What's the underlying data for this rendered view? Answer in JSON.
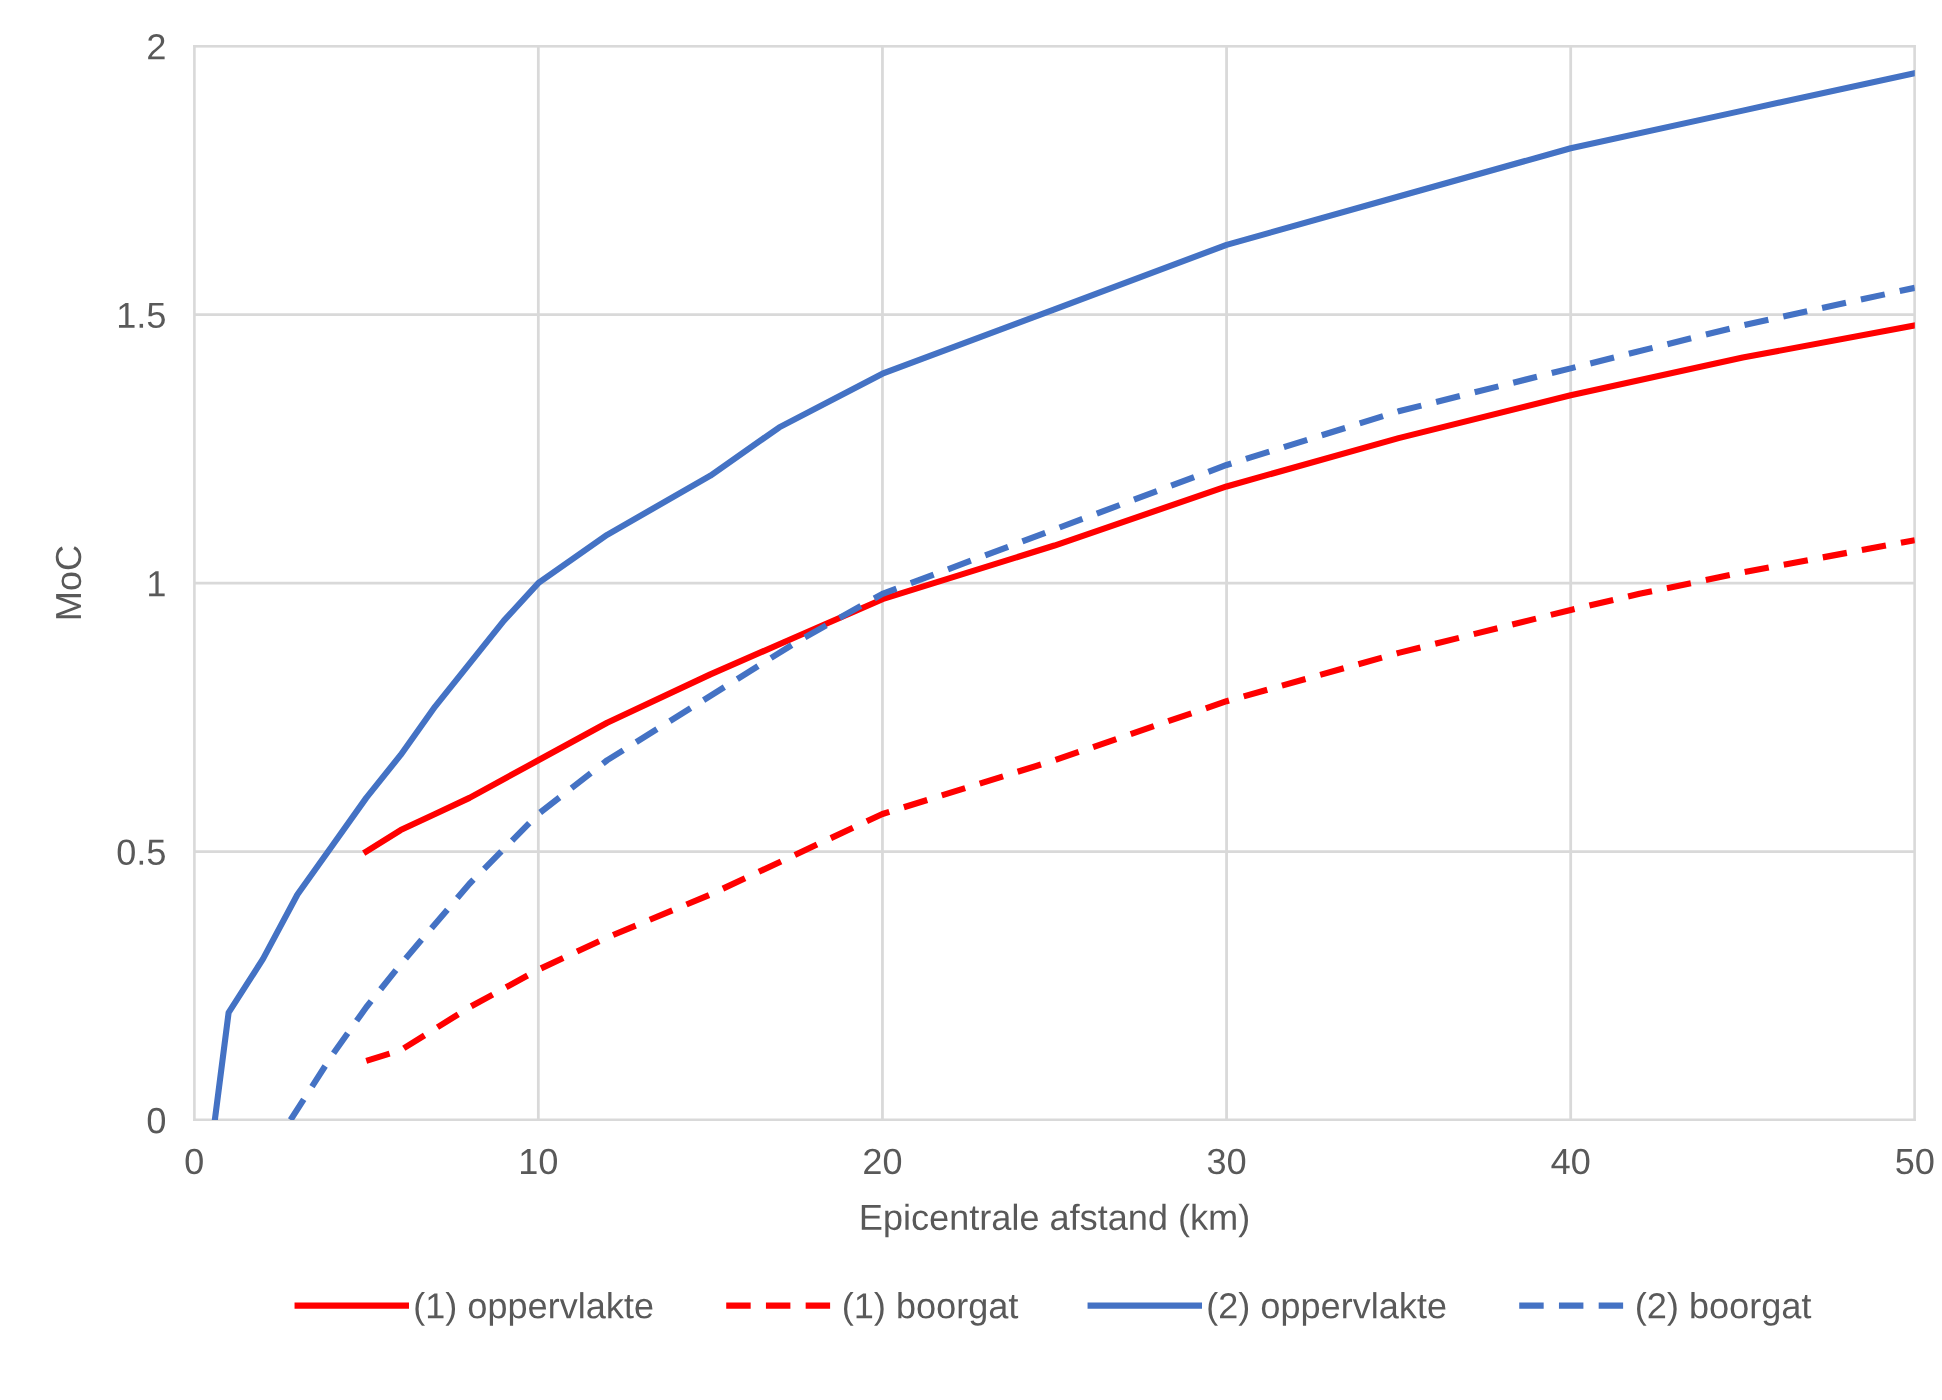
{
  "chart_data": {
    "type": "line",
    "xlabel": "Epicentrale afstand (km)",
    "ylabel": "MoC",
    "xlim": [
      0,
      50
    ],
    "xticks": [
      0,
      10,
      20,
      30,
      40,
      50
    ],
    "ylim": [
      0,
      2
    ],
    "yticks": [
      0,
      0.5,
      1,
      1.5,
      2
    ],
    "grid": true,
    "legend": "bottom",
    "marker": "none",
    "series": [
      {
        "name": "(1) oppervlakte",
        "color": "#ff0000",
        "line_style": "solid",
        "x": [
          5,
          6,
          7,
          8,
          10,
          12,
          15,
          17.5,
          20,
          25,
          30,
          35,
          40,
          45,
          50
        ],
        "values": [
          0.5,
          0.54,
          0.57,
          0.6,
          0.67,
          0.74,
          0.83,
          0.9,
          0.97,
          1.07,
          1.18,
          1.27,
          1.35,
          1.42,
          1.48
        ]
      },
      {
        "name": "(1) boorgat",
        "color": "#ff0000",
        "line_style": "dashed",
        "x": [
          5,
          6,
          8,
          10,
          12,
          15,
          20,
          25,
          30,
          35,
          40,
          42,
          45,
          50
        ],
        "values": [
          0.11,
          0.13,
          0.21,
          0.28,
          0.34,
          0.42,
          0.57,
          0.67,
          0.78,
          0.87,
          0.95,
          0.98,
          1.02,
          1.08
        ]
      },
      {
        "name": "(2) oppervlakte",
        "color": "#4472c4",
        "line_style": "solid",
        "x": [
          0.6,
          1,
          2,
          3,
          4,
          5,
          6,
          7,
          8,
          9,
          10,
          12,
          15,
          17,
          20,
          25,
          30,
          35,
          40,
          45,
          50
        ],
        "values": [
          0,
          0.2,
          0.3,
          0.42,
          0.51,
          0.6,
          0.68,
          0.77,
          0.85,
          0.93,
          1.0,
          1.09,
          1.2,
          1.29,
          1.39,
          1.51,
          1.63,
          1.72,
          1.81,
          1.88,
          1.95
        ]
      },
      {
        "name": "(2) boorgat",
        "color": "#4472c4",
        "line_style": "dashed",
        "x": [
          2.8,
          4,
          5,
          6,
          8,
          10,
          12,
          15,
          17.5,
          20,
          25,
          30,
          35,
          40,
          45,
          50
        ],
        "values": [
          0,
          0.12,
          0.21,
          0.29,
          0.44,
          0.57,
          0.67,
          0.79,
          0.89,
          0.98,
          1.1,
          1.22,
          1.32,
          1.4,
          1.48,
          1.55
        ]
      }
    ]
  }
}
